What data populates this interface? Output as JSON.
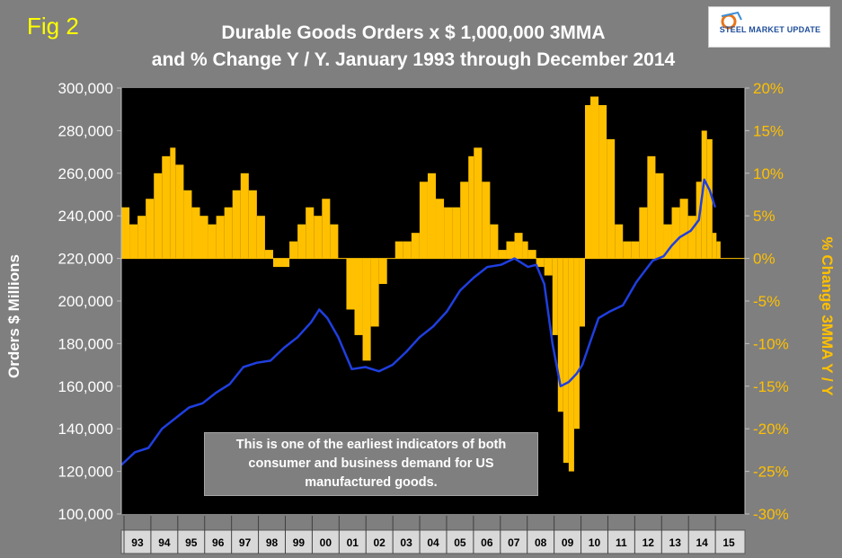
{
  "fig_label": "Fig 2",
  "logo": {
    "text": "STEEL MARKET UPDATE"
  },
  "colors": {
    "background": "#7f7f7f",
    "plot": "#000000",
    "bars": "#ffc000",
    "line": "#1f3fe0",
    "left_axis": "#ffffff",
    "right_axis": "#ffc000"
  },
  "note": {
    "line1": "This is one of the earliest indicators of both",
    "line2": "consumer and business demand for US",
    "line3": "manufactured goods."
  },
  "chart_data": {
    "type": "bar+line",
    "title_line1": "Durable Goods Orders x $ 1,000,000 3MMA",
    "title_line2": "and % Change Y / Y. January 1993 through December 2014",
    "ylabel_left": "Orders $ Millions",
    "ylabel_right": "% Change 3MMA Y / Y",
    "ylim_left": [
      100000,
      300000
    ],
    "ylim_right": [
      -30,
      20
    ],
    "y_ticks_left": [
      "300,000",
      "280,000",
      "260,000",
      "240,000",
      "220,000",
      "200,000",
      "180,000",
      "160,000",
      "140,000",
      "120,000",
      "100,000"
    ],
    "y_ticks_right": [
      "20%",
      "15%",
      "10%",
      "5%",
      "0%",
      "-5%",
      "-10%",
      "-15%",
      "-20%",
      "-25%",
      "-30%"
    ],
    "x_ticks": [
      "93",
      "94",
      "95",
      "96",
      "97",
      "98",
      "99",
      "00",
      "01",
      "02",
      "03",
      "04",
      "05",
      "06",
      "07",
      "08",
      "09",
      "10",
      "11",
      "12",
      "13",
      "14",
      "15"
    ],
    "x_range_years": [
      1993,
      2016
    ],
    "grid": false,
    "series": [
      {
        "type": "line",
        "axis": "left",
        "points": [
          [
            1993.0,
            123000
          ],
          [
            1993.5,
            129000
          ],
          [
            1994.0,
            131000
          ],
          [
            1994.5,
            140000
          ],
          [
            1995.0,
            145000
          ],
          [
            1995.5,
            150000
          ],
          [
            1996.0,
            152000
          ],
          [
            1996.5,
            157000
          ],
          [
            1997.0,
            161000
          ],
          [
            1997.5,
            169000
          ],
          [
            1998.0,
            171000
          ],
          [
            1998.5,
            172000
          ],
          [
            1999.0,
            178000
          ],
          [
            1999.5,
            183000
          ],
          [
            2000.0,
            190000
          ],
          [
            2000.3,
            196000
          ],
          [
            2000.6,
            192000
          ],
          [
            2001.0,
            183000
          ],
          [
            2001.5,
            168000
          ],
          [
            2002.0,
            169000
          ],
          [
            2002.5,
            167000
          ],
          [
            2003.0,
            170000
          ],
          [
            2003.5,
            176000
          ],
          [
            2004.0,
            183000
          ],
          [
            2004.5,
            188000
          ],
          [
            2005.0,
            195000
          ],
          [
            2005.5,
            205000
          ],
          [
            2006.0,
            211000
          ],
          [
            2006.5,
            216000
          ],
          [
            2007.0,
            217000
          ],
          [
            2007.5,
            220000
          ],
          [
            2008.0,
            216000
          ],
          [
            2008.3,
            217000
          ],
          [
            2008.6,
            208000
          ],
          [
            2008.9,
            180000
          ],
          [
            2009.2,
            160000
          ],
          [
            2009.5,
            162000
          ],
          [
            2009.8,
            166000
          ],
          [
            2010.0,
            170000
          ],
          [
            2010.3,
            181000
          ],
          [
            2010.6,
            192000
          ],
          [
            2011.0,
            195000
          ],
          [
            2011.5,
            198000
          ],
          [
            2012.0,
            209000
          ],
          [
            2012.3,
            214000
          ],
          [
            2012.6,
            219000
          ],
          [
            2013.0,
            221000
          ],
          [
            2013.3,
            226000
          ],
          [
            2013.6,
            230000
          ],
          [
            2014.0,
            233000
          ],
          [
            2014.3,
            238000
          ],
          [
            2014.5,
            257000
          ],
          [
            2014.7,
            252000
          ],
          [
            2014.9,
            244000
          ]
        ]
      },
      {
        "type": "bar",
        "axis": "right",
        "points": [
          [
            1993.0,
            6
          ],
          [
            1993.3,
            4
          ],
          [
            1993.6,
            5
          ],
          [
            1993.9,
            7
          ],
          [
            1994.2,
            10
          ],
          [
            1994.5,
            12
          ],
          [
            1994.8,
            13
          ],
          [
            1995.0,
            11
          ],
          [
            1995.3,
            8
          ],
          [
            1995.6,
            6
          ],
          [
            1995.9,
            5
          ],
          [
            1996.2,
            4
          ],
          [
            1996.5,
            5
          ],
          [
            1996.8,
            6
          ],
          [
            1997.1,
            8
          ],
          [
            1997.4,
            10
          ],
          [
            1997.7,
            8
          ],
          [
            1998.0,
            5
          ],
          [
            1998.3,
            1
          ],
          [
            1998.6,
            -1
          ],
          [
            1998.9,
            -1
          ],
          [
            1999.2,
            2
          ],
          [
            1999.5,
            4
          ],
          [
            1999.8,
            6
          ],
          [
            2000.1,
            5
          ],
          [
            2000.4,
            7
          ],
          [
            2000.7,
            4
          ],
          [
            2001.0,
            0
          ],
          [
            2001.3,
            -6
          ],
          [
            2001.6,
            -9
          ],
          [
            2001.9,
            -12
          ],
          [
            2002.2,
            -8
          ],
          [
            2002.5,
            -3
          ],
          [
            2002.8,
            0
          ],
          [
            2003.1,
            2
          ],
          [
            2003.4,
            2
          ],
          [
            2003.7,
            3
          ],
          [
            2004.0,
            9
          ],
          [
            2004.3,
            10
          ],
          [
            2004.6,
            7
          ],
          [
            2004.9,
            6
          ],
          [
            2005.2,
            6
          ],
          [
            2005.5,
            9
          ],
          [
            2005.8,
            12
          ],
          [
            2006.0,
            13
          ],
          [
            2006.3,
            9
          ],
          [
            2006.6,
            4
          ],
          [
            2006.9,
            1
          ],
          [
            2007.2,
            2
          ],
          [
            2007.5,
            3
          ],
          [
            2007.8,
            2
          ],
          [
            2008.0,
            1
          ],
          [
            2008.3,
            -1
          ],
          [
            2008.6,
            -2
          ],
          [
            2008.9,
            -9
          ],
          [
            2009.1,
            -18
          ],
          [
            2009.3,
            -24
          ],
          [
            2009.5,
            -25
          ],
          [
            2009.7,
            -20
          ],
          [
            2009.9,
            -8
          ],
          [
            2010.1,
            18
          ],
          [
            2010.3,
            19
          ],
          [
            2010.6,
            18
          ],
          [
            2010.9,
            14
          ],
          [
            2011.2,
            4
          ],
          [
            2011.5,
            2
          ],
          [
            2011.8,
            2
          ],
          [
            2012.1,
            6
          ],
          [
            2012.4,
            12
          ],
          [
            2012.7,
            10
          ],
          [
            2013.0,
            4
          ],
          [
            2013.3,
            6
          ],
          [
            2013.6,
            7
          ],
          [
            2013.9,
            5
          ],
          [
            2014.2,
            9
          ],
          [
            2014.4,
            15
          ],
          [
            2014.6,
            14
          ],
          [
            2014.8,
            3
          ],
          [
            2014.95,
            2
          ]
        ]
      }
    ]
  }
}
